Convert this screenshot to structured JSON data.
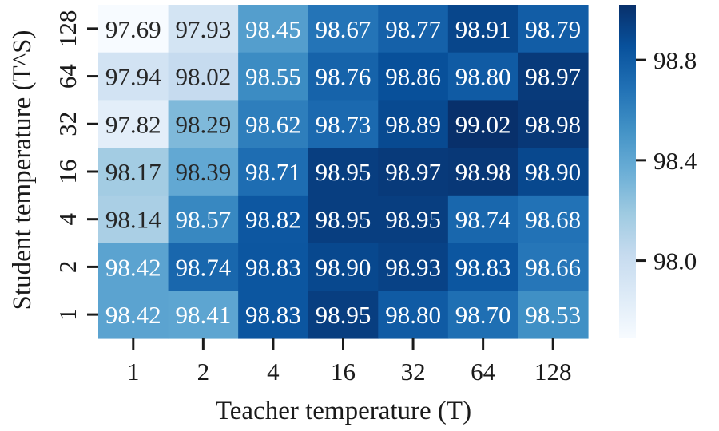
{
  "chart_data": {
    "type": "heatmap",
    "xlabel": "Teacher temperature (T)",
    "ylabel": "Student temperature (T^S)",
    "x_categories": [
      "1",
      "2",
      "4",
      "16",
      "32",
      "64",
      "128"
    ],
    "y_categories": [
      "128",
      "64",
      "32",
      "16",
      "4",
      "2",
      "1"
    ],
    "values": [
      [
        97.69,
        97.93,
        98.45,
        98.67,
        98.77,
        98.91,
        98.79
      ],
      [
        97.94,
        98.02,
        98.55,
        98.76,
        98.86,
        98.8,
        98.97
      ],
      [
        97.82,
        98.29,
        98.62,
        98.73,
        98.89,
        99.02,
        98.98
      ],
      [
        98.17,
        98.39,
        98.71,
        98.95,
        98.97,
        98.98,
        98.9
      ],
      [
        98.14,
        98.57,
        98.82,
        98.95,
        98.95,
        98.74,
        98.68
      ],
      [
        98.42,
        98.74,
        98.83,
        98.9,
        98.93,
        98.83,
        98.66
      ],
      [
        98.42,
        98.41,
        98.83,
        98.95,
        98.8,
        98.7,
        98.53
      ]
    ],
    "colorscale": "Blues",
    "vmin": 97.69,
    "vmax": 99.02,
    "colorbar_ticks": [
      "98.0",
      "98.4",
      "98.8"
    ],
    "colors": {
      "low": "#f7fbff",
      "high": "#08306b"
    }
  }
}
